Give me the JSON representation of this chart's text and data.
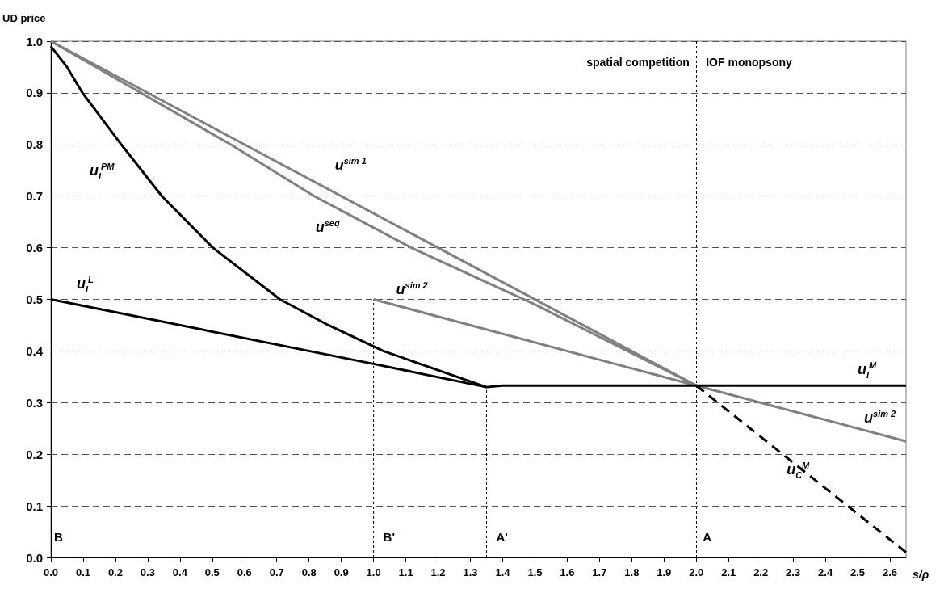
{
  "chart_data": {
    "type": "line",
    "xlabel": "s/ρ",
    "ylabel": "UD price",
    "xlim": [
      0,
      2.65
    ],
    "ylim": [
      0,
      1
    ],
    "xticks": [
      {
        "value": 0,
        "label": "0.0"
      },
      {
        "value": 0.1,
        "label": "0.1"
      },
      {
        "value": 0.2,
        "label": "0.2"
      },
      {
        "value": 0.3,
        "label": "0.3"
      },
      {
        "value": 0.4,
        "label": "0.4"
      },
      {
        "value": 0.5,
        "label": "0.5"
      },
      {
        "value": 0.6,
        "label": "0.6"
      },
      {
        "value": 0.7,
        "label": "0.7"
      },
      {
        "value": 0.8,
        "label": "0.8"
      },
      {
        "value": 0.9,
        "label": "0.9"
      },
      {
        "value": 1,
        "label": "1.0"
      },
      {
        "value": 1.1,
        "label": "1.1"
      },
      {
        "value": 1.2,
        "label": "1.2"
      },
      {
        "value": 1.3,
        "label": "1.3"
      },
      {
        "value": 1.4,
        "label": "1.4"
      },
      {
        "value": 1.5,
        "label": "1.5"
      },
      {
        "value": 1.6,
        "label": "1.6"
      },
      {
        "value": 1.7,
        "label": "1.7"
      },
      {
        "value": 1.8,
        "label": "1.8"
      },
      {
        "value": 1.9,
        "label": "1.9"
      },
      {
        "value": 2,
        "label": "2.0"
      },
      {
        "value": 2.1,
        "label": "2.1"
      },
      {
        "value": 2.2,
        "label": "2.2"
      },
      {
        "value": 2.3,
        "label": "2.3"
      },
      {
        "value": 2.4,
        "label": "2.4"
      },
      {
        "value": 2.5,
        "label": "2.5"
      },
      {
        "value": 2.6,
        "label": "2.6"
      }
    ],
    "yticks": [
      {
        "value": 0,
        "label": "0.0"
      },
      {
        "value": 0.1,
        "label": "0.1"
      },
      {
        "value": 0.2,
        "label": "0.2"
      },
      {
        "value": 0.3,
        "label": "0.3"
      },
      {
        "value": 0.4,
        "label": "0.4"
      },
      {
        "value": 0.5,
        "label": "0.5"
      },
      {
        "value": 0.6,
        "label": "0.6"
      },
      {
        "value": 0.7,
        "label": "0.7"
      },
      {
        "value": 0.8,
        "label": "0.8"
      },
      {
        "value": 0.9,
        "label": "0.9"
      },
      {
        "value": 1,
        "label": "1.0"
      }
    ],
    "grid": "y",
    "marker": "none",
    "line_style": "solid",
    "series": [
      {
        "name": "u$^{sim 1}$",
        "color": "#808080",
        "x": [
          0,
          2
        ],
        "values": [
          1,
          0.333
        ]
      },
      {
        "name": "u$^{seq}$",
        "color": "#808080",
        "x": [
          0,
          0.557,
          0.816,
          1.117,
          1.5,
          2
        ],
        "values": [
          1,
          0.8,
          0.7,
          0.6,
          0.49,
          0.333
        ]
      },
      {
        "name": "u$^{sim 2}$",
        "color": "#808080",
        "x": [
          1,
          2,
          2.65
        ],
        "values": [
          0.5,
          0.333,
          0.225
        ]
      },
      {
        "name": "u$_{I}$$^{PM}$",
        "color": "#000000",
        "x": [
          0,
          0.05,
          0.098,
          0.218,
          0.344,
          0.502,
          0.71,
          0.86,
          1.03,
          1.35
        ],
        "values": [
          0.99,
          0.95,
          0.9,
          0.8,
          0.7,
          0.6,
          0.5,
          0.45,
          0.4,
          0.33
        ]
      },
      {
        "name": "u$_{I}$$^{L}$",
        "color": "#000000",
        "x": [
          0,
          1,
          1.35,
          1.4,
          2.65
        ],
        "values": [
          0.5,
          0.375,
          0.33,
          0.333,
          0.333
        ]
      },
      {
        "name": "u$_{C}$$^{M}$",
        "color": "#000000",
        "line_style": "dashed",
        "x": [
          2,
          2.65
        ],
        "values": [
          0.333,
          0.01
        ]
      },
      {
        "color": "#000000",
        "line_style": "dotted",
        "x": [
          1,
          1
        ],
        "values": [
          0,
          0.5
        ]
      },
      {
        "color": "#000000",
        "line_style": "dotted",
        "x": [
          1.35,
          1.35
        ],
        "values": [
          0,
          0.33
        ]
      }
    ],
    "ref_lines": [
      {
        "axis": "x",
        "value": 2,
        "color": "#000000",
        "line_style": "dotted"
      }
    ],
    "annotations": [
      {
        "text": "spatial competition",
        "x": 2,
        "y": 0.97
      },
      {
        "text": "IOF monopsony",
        "x": 2,
        "y": 0.97
      },
      "B",
      {
        "text": "u$_{I}$$^{M}$",
        "x": 2.5,
        "y": 0.333
      },
      {
        "text": "B'",
        "x": 1,
        "y": 0.02
      },
      {
        "text": "A'",
        "x": 1.35,
        "y": 0.02
      },
      {
        "text": "A",
        "x": 2,
        "y": 0.02
      }
    ]
  }
}
